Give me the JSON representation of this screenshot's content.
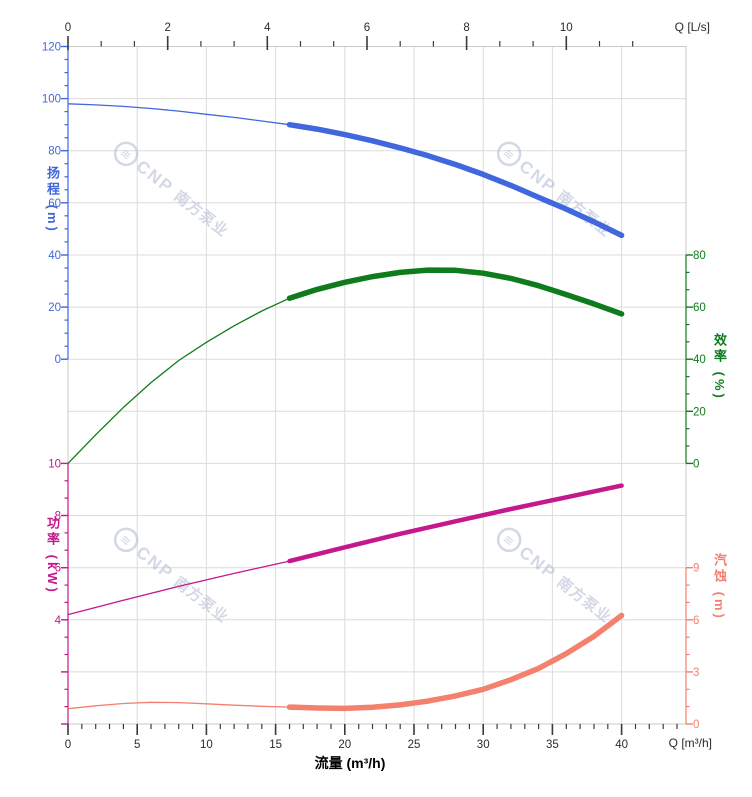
{
  "chart_data": {
    "type": "line",
    "description": "Pump performance curves: head, efficiency, power and NPSH versus flow",
    "x_axis_bottom": {
      "title": "流量 (m³/h)",
      "unit_label": "Q [m³/h]",
      "ticks": [
        0,
        5,
        10,
        15,
        20,
        25,
        30,
        35,
        40
      ],
      "minor_step": 1,
      "max_m3h": 44.65
    },
    "x_axis_top": {
      "unit_label": "Q [L/s]",
      "ticks": [
        0,
        2,
        4,
        6,
        8,
        10
      ],
      "minor_step": 0.6667,
      "m3h_per_lps": 3.6,
      "max_lps": 12.4
    },
    "y_axes": [
      {
        "id": "head",
        "title": "扬程 (m)",
        "color": "#4167DE",
        "side": "left",
        "top_value": 120,
        "unit_per_row": 20,
        "top_row": 0,
        "bottom_row": 6,
        "labeled_ticks": [
          120,
          100,
          80,
          60,
          40,
          20,
          0
        ],
        "minor_divisions": 4
      },
      {
        "id": "eff",
        "title": "效率 (%)",
        "color": "#0E7C1C",
        "side": "right",
        "top_value": 80,
        "unit_per_row": 20,
        "top_row": 4,
        "bottom_row": 8,
        "labeled_ticks": [
          80,
          60,
          40,
          20,
          0
        ],
        "minor_divisions": 3
      },
      {
        "id": "power",
        "title": "功率 (kW)",
        "color": "#C4188C",
        "side": "left",
        "top_value": 10,
        "unit_per_row": 2,
        "top_row": 8,
        "bottom_row": 13,
        "labeled_ticks": [
          10,
          8,
          6,
          4
        ],
        "minor_divisions": 3
      },
      {
        "id": "npsh",
        "title": "汽蚀 (m)",
        "color": "#F4806E",
        "side": "right",
        "top_value": 9,
        "unit_per_row": 3,
        "top_row": 10,
        "bottom_row": 13,
        "labeled_ticks": [
          9,
          6,
          3,
          0
        ],
        "minor_divisions": 3
      }
    ],
    "series": [
      {
        "id": "head",
        "name": "扬程",
        "axis": "head",
        "color": "#4167DE",
        "bold_from": 16,
        "thin_width": 1.3,
        "bold_width": 5.5,
        "points": [
          [
            0,
            98
          ],
          [
            2,
            97.6
          ],
          [
            4,
            97.0
          ],
          [
            6,
            96.2
          ],
          [
            8,
            95.2
          ],
          [
            10,
            94.0
          ],
          [
            12,
            92.8
          ],
          [
            14,
            91.4
          ],
          [
            16,
            90.0
          ],
          [
            18,
            88.3
          ],
          [
            20,
            86.2
          ],
          [
            22,
            83.8
          ],
          [
            24,
            81.1
          ],
          [
            26,
            78.1
          ],
          [
            28,
            74.7
          ],
          [
            30,
            70.9
          ],
          [
            32,
            66.7
          ],
          [
            34,
            62.1
          ],
          [
            36,
            57.6
          ],
          [
            38,
            52.7
          ],
          [
            40,
            47.5
          ]
        ]
      },
      {
        "id": "eff",
        "name": "效率",
        "axis": "eff",
        "color": "#0E7C1C",
        "bold_from": 16,
        "thin_width": 1.3,
        "bold_width": 5.5,
        "points": [
          [
            0,
            0
          ],
          [
            2,
            11
          ],
          [
            4,
            21.5
          ],
          [
            6,
            31
          ],
          [
            8,
            39.5
          ],
          [
            10,
            46.5
          ],
          [
            12,
            52.8
          ],
          [
            14,
            58.5
          ],
          [
            16,
            63.4
          ],
          [
            18,
            66.8
          ],
          [
            20,
            69.5
          ],
          [
            22,
            71.7
          ],
          [
            24,
            73.3
          ],
          [
            26,
            74.2
          ],
          [
            28,
            74.1
          ],
          [
            30,
            73.0
          ],
          [
            32,
            71.0
          ],
          [
            34,
            68.2
          ],
          [
            36,
            64.8
          ],
          [
            38,
            61.2
          ],
          [
            40,
            57.4
          ]
        ]
      },
      {
        "id": "power",
        "name": "功率",
        "axis": "power",
        "color": "#C4188C",
        "bold_from": 16,
        "thin_width": 1.3,
        "bold_width": 4.5,
        "points": [
          [
            0,
            4.2
          ],
          [
            4,
            4.75
          ],
          [
            8,
            5.28
          ],
          [
            12,
            5.78
          ],
          [
            16,
            6.25
          ],
          [
            20,
            6.78
          ],
          [
            24,
            7.3
          ],
          [
            28,
            7.78
          ],
          [
            32,
            8.25
          ],
          [
            36,
            8.7
          ],
          [
            40,
            9.15
          ]
        ]
      },
      {
        "id": "npsh",
        "name": "汽蚀",
        "axis": "npsh",
        "color": "#F4806E",
        "bold_from": 16,
        "thin_width": 1.3,
        "bold_width": 5.5,
        "points": [
          [
            0,
            0.88
          ],
          [
            2,
            1.05
          ],
          [
            4,
            1.18
          ],
          [
            6,
            1.25
          ],
          [
            8,
            1.23
          ],
          [
            10,
            1.16
          ],
          [
            12,
            1.08
          ],
          [
            14,
            1.02
          ],
          [
            16,
            0.97
          ],
          [
            18,
            0.92
          ],
          [
            20,
            0.9
          ],
          [
            22,
            0.96
          ],
          [
            24,
            1.1
          ],
          [
            26,
            1.32
          ],
          [
            28,
            1.62
          ],
          [
            30,
            2.0
          ],
          [
            32,
            2.55
          ],
          [
            34,
            3.2
          ],
          [
            36,
            4.05
          ],
          [
            38,
            5.05
          ],
          [
            40,
            6.25
          ]
        ]
      }
    ],
    "grid": true,
    "legend": "none"
  },
  "watermark": {
    "logo_symbol": "≋",
    "text_en": "CNP",
    "text_cn": "南方泵业"
  },
  "colors": {
    "grid": "#DCDCDC",
    "border": "#C9C9C9",
    "axis_text": "#2B2B2B",
    "watermark": "#AEB9CE"
  }
}
